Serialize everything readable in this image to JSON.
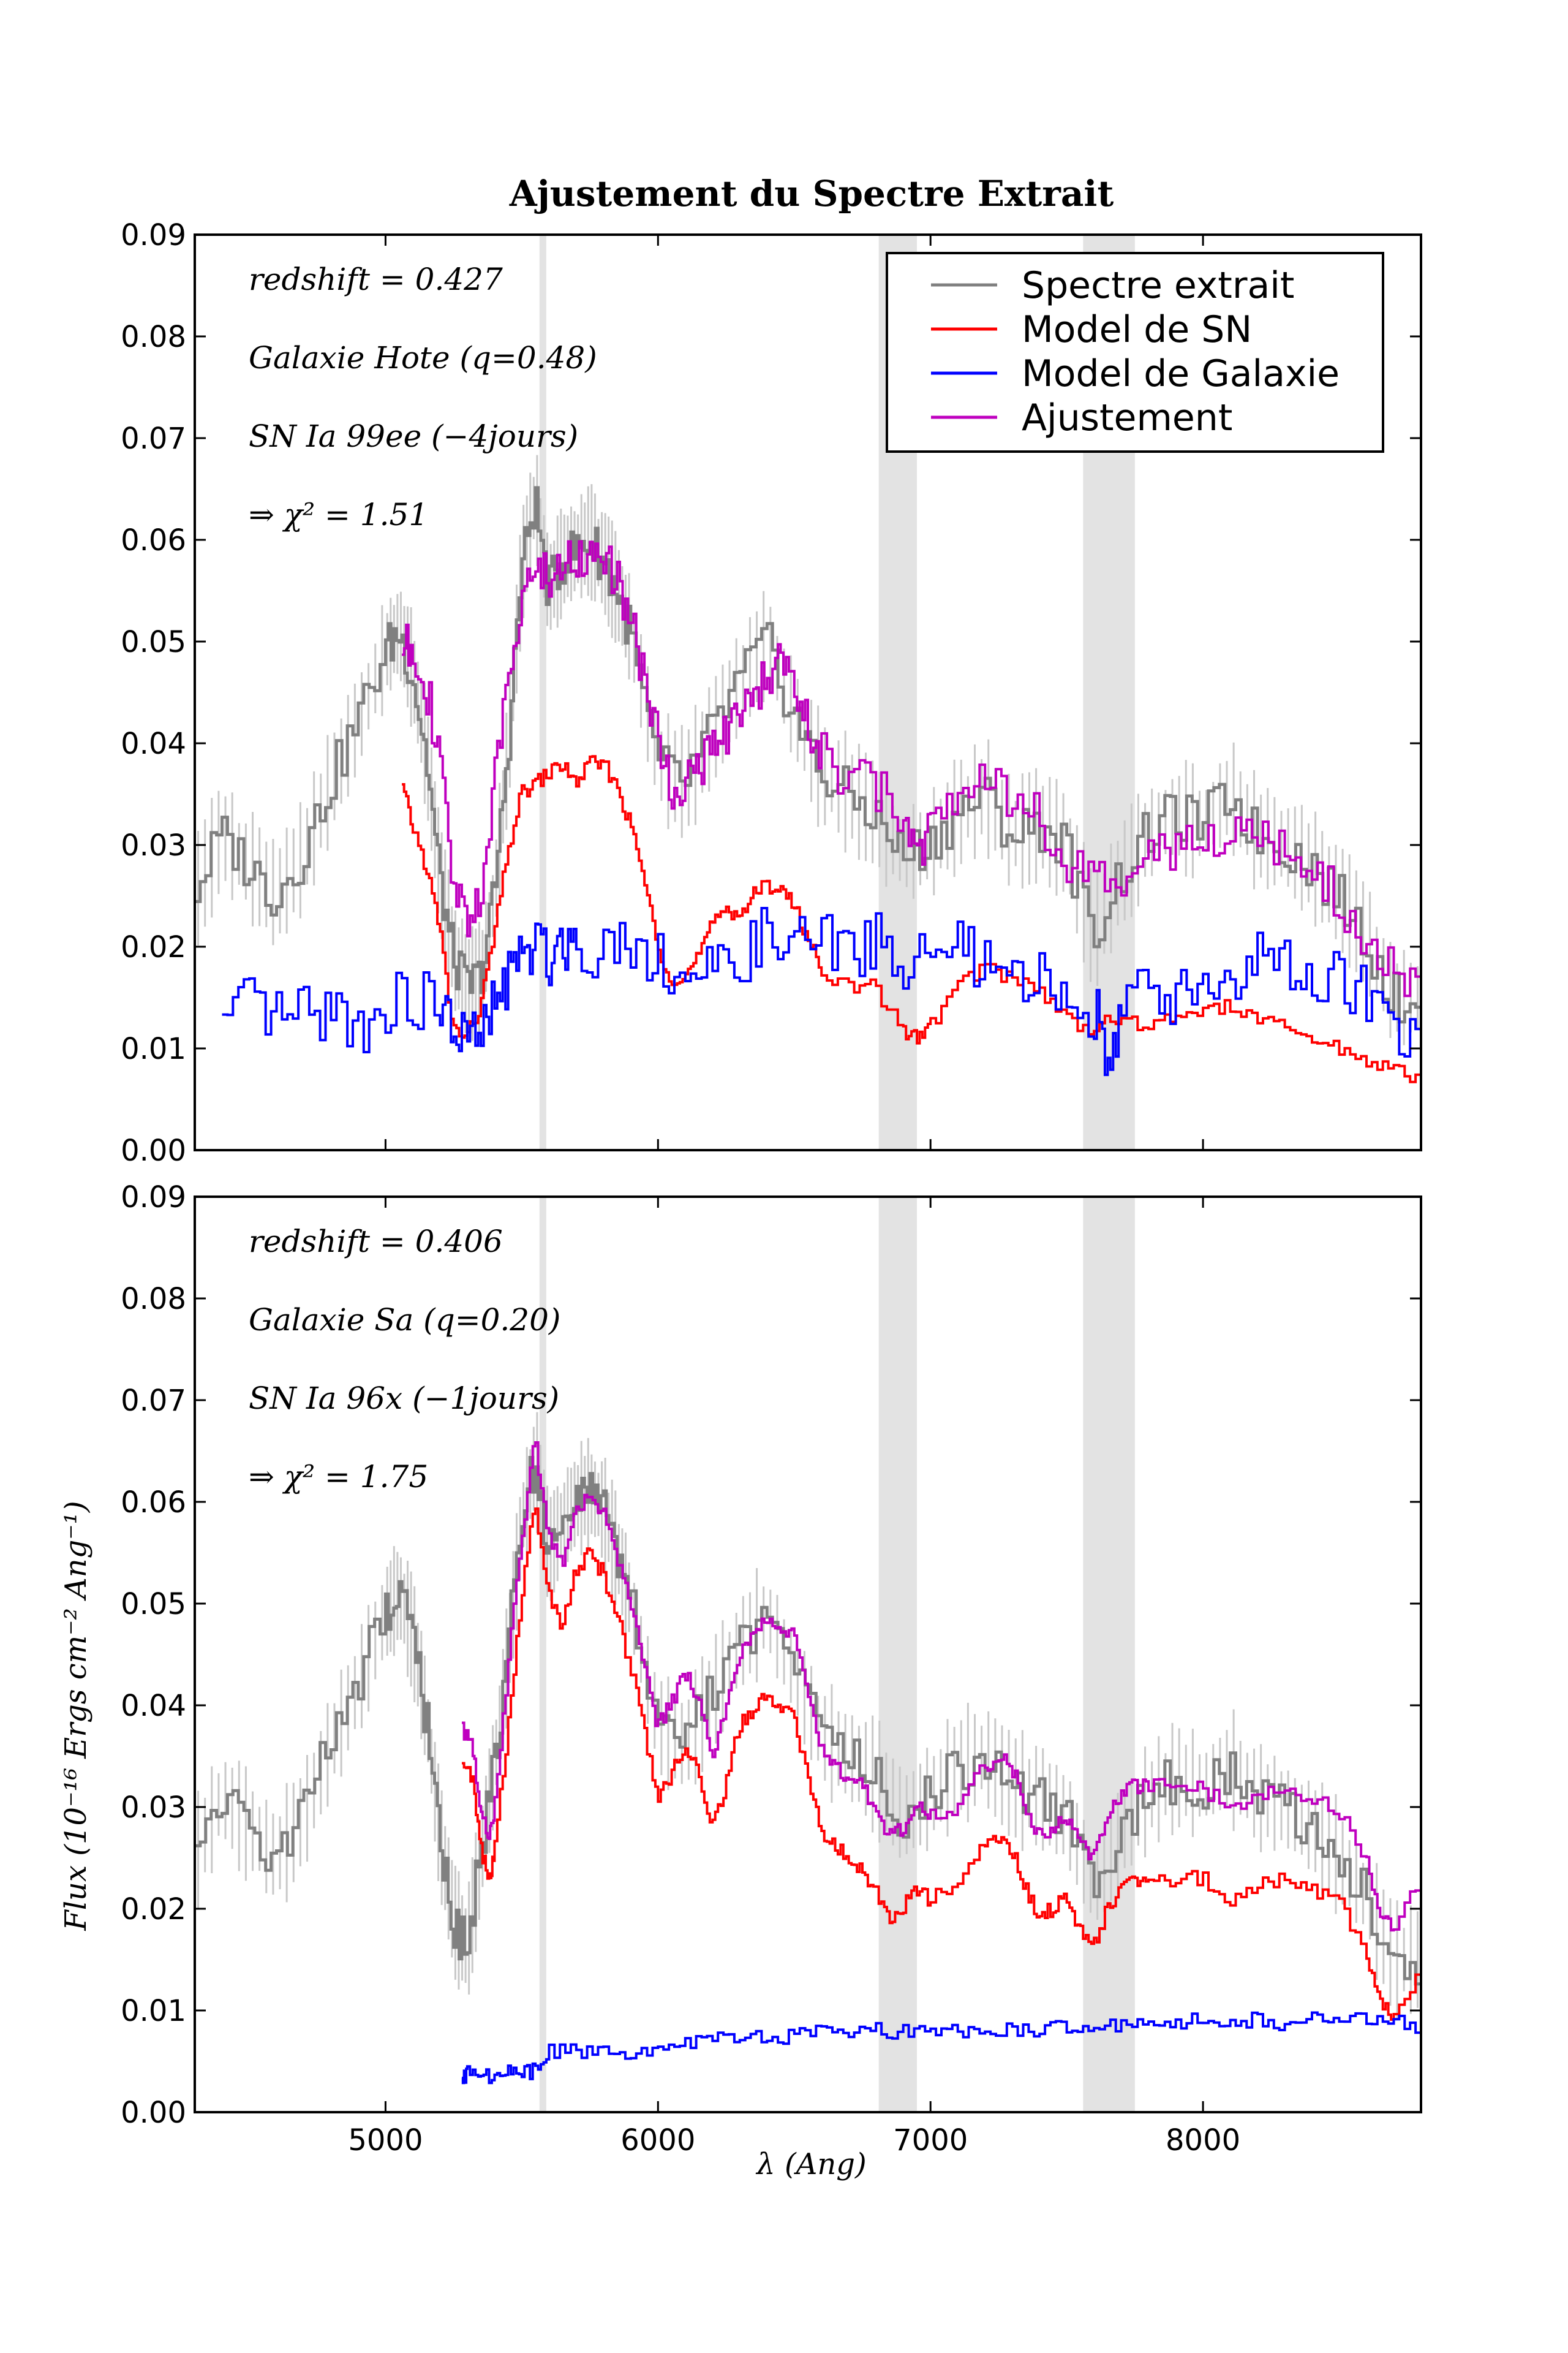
{
  "title": "Ajustement du Spectre Extrait",
  "xlabel": "λ (Ang)",
  "ylabel": "Flux (10⁻¹⁶ Ergs cm⁻² Ang⁻¹)",
  "legend": {
    "placement": "top-right",
    "entries": [
      "Spectre extrait",
      "Model de SN",
      "Model de Galaxie",
      "Ajustement"
    ]
  },
  "colors": {
    "spectre": "#808080",
    "errorbars": "#c8c8c8",
    "sn": "#ff0000",
    "galaxie": "#0000ff",
    "ajustement": "#bf00bf",
    "band": "#e3e3e3"
  },
  "chart_data": [
    {
      "type": "line",
      "panel": "top",
      "xlim": [
        4300,
        8800
      ],
      "ylim": [
        0,
        0.09
      ],
      "xticks": [
        5000,
        6000,
        7000,
        8000
      ],
      "yticks": [
        "0.00",
        "0.01",
        "0.02",
        "0.03",
        "0.04",
        "0.05",
        "0.06",
        "0.07",
        "0.08",
        "0.09"
      ],
      "shaded_bands": [
        [
          5565,
          5590
        ],
        [
          6810,
          6950
        ],
        [
          7560,
          7750
        ]
      ],
      "annotations": [
        "redshift = 0.427",
        "Galaxie Hote (q=0.48)",
        "SN Ia 99ee (−4jours)",
        "⇒ χ² = 1.51"
      ],
      "series": [
        {
          "name": "Spectre extrait",
          "x": [
            4300,
            4400,
            4500,
            4600,
            4700,
            4800,
            4900,
            5000,
            5050,
            5100,
            5150,
            5200,
            5250,
            5300,
            5350,
            5400,
            5450,
            5500,
            5550,
            5600,
            5650,
            5700,
            5750,
            5800,
            5850,
            5900,
            6000,
            6100,
            6200,
            6300,
            6400,
            6500,
            6600,
            6700,
            6800,
            6900,
            7000,
            7100,
            7200,
            7300,
            7400,
            7500,
            7600,
            7700,
            7800,
            7900,
            8000,
            8100,
            8200,
            8300,
            8400,
            8500,
            8600,
            8700,
            8800
          ],
          "y": [
            0.025,
            0.031,
            0.028,
            0.025,
            0.029,
            0.036,
            0.042,
            0.049,
            0.051,
            0.047,
            0.039,
            0.027,
            0.019,
            0.016,
            0.017,
            0.025,
            0.039,
            0.057,
            0.064,
            0.055,
            0.058,
            0.059,
            0.06,
            0.058,
            0.055,
            0.051,
            0.038,
            0.036,
            0.041,
            0.046,
            0.05,
            0.043,
            0.037,
            0.035,
            0.033,
            0.029,
            0.03,
            0.033,
            0.035,
            0.031,
            0.032,
            0.03,
            0.021,
            0.027,
            0.031,
            0.033,
            0.032,
            0.035,
            0.031,
            0.03,
            0.028,
            0.025,
            0.021,
            0.015,
            0.015
          ]
        },
        {
          "name": "Model de SN",
          "x": [
            5060,
            5100,
            5150,
            5200,
            5250,
            5300,
            5350,
            5400,
            5450,
            5500,
            5550,
            5600,
            5650,
            5700,
            5750,
            5800,
            5850,
            5900,
            5950,
            6000,
            6050,
            6100,
            6150,
            6200,
            6250,
            6300,
            6350,
            6400,
            6450,
            6500,
            6550,
            6600,
            6700,
            6800,
            6900,
            6950,
            7000,
            7100,
            7200,
            7300,
            7400,
            7500,
            7600,
            7700,
            7800,
            7900,
            8000,
            8100,
            8200,
            8300,
            8400,
            8500,
            8600,
            8700,
            8800
          ],
          "y": [
            0.036,
            0.032,
            0.028,
            0.022,
            0.012,
            0.011,
            0.014,
            0.021,
            0.029,
            0.035,
            0.036,
            0.037,
            0.038,
            0.036,
            0.038,
            0.038,
            0.036,
            0.032,
            0.027,
            0.02,
            0.017,
            0.017,
            0.019,
            0.022,
            0.024,
            0.023,
            0.025,
            0.026,
            0.026,
            0.024,
            0.021,
            0.018,
            0.016,
            0.016,
            0.012,
            0.011,
            0.012,
            0.016,
            0.018,
            0.017,
            0.016,
            0.013,
            0.012,
            0.013,
            0.012,
            0.013,
            0.014,
            0.014,
            0.013,
            0.012,
            0.011,
            0.01,
            0.009,
            0.008,
            0.007
          ]
        },
        {
          "name": "Model de Galaxie",
          "x": [
            4400,
            4500,
            4600,
            4700,
            4800,
            4900,
            5000,
            5100,
            5200,
            5250,
            5300,
            5350,
            5400,
            5450,
            5500,
            5550,
            5600,
            5650,
            5700,
            5800,
            5900,
            6000,
            6100,
            6200,
            6300,
            6400,
            6500,
            6600,
            6700,
            6800,
            6900,
            7000,
            7100,
            7200,
            7300,
            7400,
            7500,
            7600,
            7650,
            7700,
            7800,
            7900,
            8000,
            8100,
            8200,
            8300,
            8400,
            8500,
            8600,
            8700,
            8800
          ],
          "y": [
            0.012,
            0.014,
            0.013,
            0.013,
            0.014,
            0.012,
            0.014,
            0.015,
            0.014,
            0.012,
            0.011,
            0.011,
            0.014,
            0.017,
            0.019,
            0.02,
            0.019,
            0.021,
            0.02,
            0.02,
            0.021,
            0.019,
            0.017,
            0.017,
            0.019,
            0.021,
            0.02,
            0.021,
            0.019,
            0.021,
            0.018,
            0.019,
            0.02,
            0.018,
            0.016,
            0.017,
            0.015,
            0.014,
            0.01,
            0.013,
            0.016,
            0.015,
            0.017,
            0.016,
            0.019,
            0.018,
            0.016,
            0.017,
            0.015,
            0.012,
            0.01
          ]
        },
        {
          "name": "Ajustement",
          "x": [
            5060,
            5100,
            5150,
            5200,
            5250,
            5300,
            5350,
            5400,
            5450,
            5500,
            5550,
            5600,
            5650,
            5700,
            5750,
            5800,
            5850,
            5900,
            5950,
            6000,
            6050,
            6100,
            6150,
            6200,
            6250,
            6300,
            6350,
            6400,
            6450,
            6500,
            6550,
            6600,
            6700,
            6800,
            6900,
            6950,
            7000,
            7100,
            7200,
            7300,
            7400,
            7500,
            7600,
            7700,
            7800,
            7900,
            8000,
            8100,
            8200,
            8300,
            8400,
            8500,
            8600,
            8700,
            8800
          ],
          "y": [
            0.049,
            0.05,
            0.046,
            0.038,
            0.026,
            0.023,
            0.025,
            0.035,
            0.046,
            0.055,
            0.057,
            0.056,
            0.058,
            0.058,
            0.059,
            0.058,
            0.056,
            0.052,
            0.047,
            0.04,
            0.036,
            0.036,
            0.038,
            0.039,
            0.041,
            0.042,
            0.044,
            0.047,
            0.048,
            0.045,
            0.042,
            0.039,
            0.036,
            0.036,
            0.032,
            0.03,
            0.031,
            0.036,
            0.038,
            0.035,
            0.033,
            0.028,
            0.026,
            0.026,
            0.028,
            0.03,
            0.031,
            0.03,
            0.032,
            0.03,
            0.027,
            0.025,
            0.02,
            0.018,
            0.017
          ]
        }
      ]
    },
    {
      "type": "line",
      "panel": "bottom",
      "xlim": [
        4300,
        8800
      ],
      "ylim": [
        0,
        0.09
      ],
      "xticks": [
        5000,
        6000,
        7000,
        8000
      ],
      "yticks": [
        "0.00",
        "0.01",
        "0.02",
        "0.03",
        "0.04",
        "0.05",
        "0.06",
        "0.07",
        "0.08",
        "0.09"
      ],
      "shaded_bands": [
        [
          5565,
          5590
        ],
        [
          6810,
          6950
        ],
        [
          7560,
          7750
        ]
      ],
      "annotations": [
        "redshift = 0.406",
        "Galaxie Sa (q=0.20)",
        "SN Ia 96x (−1jours)",
        "⇒ χ² = 1.75"
      ],
      "series": [
        {
          "name": "Spectre extrait",
          "x": [
            4300,
            4400,
            4500,
            4600,
            4700,
            4800,
            4900,
            5000,
            5050,
            5100,
            5150,
            5200,
            5250,
            5300,
            5350,
            5400,
            5450,
            5500,
            5550,
            5600,
            5650,
            5700,
            5750,
            5800,
            5850,
            5900,
            6000,
            6100,
            6200,
            6300,
            6400,
            6500,
            6600,
            6700,
            6800,
            6900,
            7000,
            7100,
            7200,
            7300,
            7400,
            7500,
            7600,
            7700,
            7800,
            7900,
            8000,
            8100,
            8200,
            8300,
            8400,
            8500,
            8600,
            8700,
            8800
          ],
          "y": [
            0.025,
            0.031,
            0.028,
            0.025,
            0.029,
            0.036,
            0.042,
            0.049,
            0.051,
            0.047,
            0.039,
            0.027,
            0.019,
            0.016,
            0.025,
            0.034,
            0.045,
            0.058,
            0.064,
            0.055,
            0.058,
            0.06,
            0.061,
            0.059,
            0.055,
            0.05,
            0.038,
            0.036,
            0.041,
            0.046,
            0.049,
            0.043,
            0.037,
            0.035,
            0.033,
            0.029,
            0.031,
            0.034,
            0.035,
            0.032,
            0.031,
            0.029,
            0.022,
            0.027,
            0.031,
            0.033,
            0.032,
            0.034,
            0.031,
            0.03,
            0.028,
            0.025,
            0.021,
            0.015,
            0.015
          ]
        },
        {
          "name": "Model de SN",
          "x": [
            5280,
            5320,
            5350,
            5380,
            5400,
            5450,
            5500,
            5550,
            5600,
            5650,
            5700,
            5750,
            5800,
            5850,
            5900,
            5950,
            6000,
            6050,
            6100,
            6150,
            6200,
            6250,
            6300,
            6350,
            6400,
            6450,
            6500,
            6550,
            6600,
            6650,
            6700,
            6750,
            6800,
            6850,
            6900,
            6950,
            7000,
            7100,
            7200,
            7250,
            7300,
            7350,
            7400,
            7450,
            7500,
            7550,
            7600,
            7650,
            7700,
            7750,
            7800,
            7900,
            8000,
            8100,
            8200,
            8300,
            8400,
            8500,
            8600,
            8650,
            8700,
            8800
          ],
          "y": [
            0.035,
            0.033,
            0.026,
            0.023,
            0.025,
            0.037,
            0.05,
            0.06,
            0.051,
            0.048,
            0.053,
            0.055,
            0.053,
            0.049,
            0.044,
            0.038,
            0.031,
            0.033,
            0.036,
            0.034,
            0.028,
            0.032,
            0.038,
            0.039,
            0.041,
            0.04,
            0.039,
            0.033,
            0.028,
            0.026,
            0.025,
            0.024,
            0.022,
            0.019,
            0.02,
            0.022,
            0.021,
            0.022,
            0.026,
            0.027,
            0.026,
            0.022,
            0.019,
            0.02,
            0.021,
            0.018,
            0.016,
            0.02,
            0.022,
            0.023,
            0.023,
            0.023,
            0.023,
            0.021,
            0.022,
            0.023,
            0.022,
            0.021,
            0.016,
            0.011,
            0.009,
            0.014
          ]
        },
        {
          "name": "Model de Galaxie",
          "x": [
            5280,
            5300,
            5350,
            5400,
            5450,
            5500,
            5550,
            5600,
            5700,
            5800,
            5900,
            6000,
            6100,
            6200,
            6300,
            6400,
            6500,
            6600,
            6700,
            6800,
            6900,
            7000,
            7100,
            7200,
            7300,
            7400,
            7500,
            7600,
            7700,
            7800,
            7900,
            8000,
            8100,
            8200,
            8300,
            8400,
            8500,
            8600,
            8700,
            8800
          ],
          "y": [
            0.003,
            0.004,
            0.004,
            0.003,
            0.004,
            0.004,
            0.004,
            0.006,
            0.006,
            0.006,
            0.006,
            0.0065,
            0.007,
            0.007,
            0.0072,
            0.0075,
            0.0075,
            0.0078,
            0.0078,
            0.008,
            0.0078,
            0.0078,
            0.008,
            0.0082,
            0.008,
            0.0082,
            0.0082,
            0.0085,
            0.0085,
            0.0088,
            0.0088,
            0.009,
            0.009,
            0.009,
            0.0088,
            0.0092,
            0.0092,
            0.0095,
            0.009,
            0.0085
          ]
        },
        {
          "name": "Ajustement",
          "x": [
            5280,
            5320,
            5350,
            5380,
            5400,
            5450,
            5500,
            5550,
            5600,
            5650,
            5700,
            5750,
            5800,
            5850,
            5900,
            5950,
            6000,
            6050,
            6100,
            6150,
            6200,
            6250,
            6300,
            6350,
            6400,
            6450,
            6500,
            6550,
            6600,
            6650,
            6700,
            6750,
            6800,
            6850,
            6900,
            6950,
            7000,
            7100,
            7200,
            7250,
            7300,
            7350,
            7400,
            7450,
            7500,
            7550,
            7600,
            7650,
            7700,
            7750,
            7800,
            7900,
            8000,
            8100,
            8200,
            8300,
            8400,
            8500,
            8600,
            8650,
            8700,
            8800
          ],
          "y": [
            0.038,
            0.036,
            0.03,
            0.027,
            0.029,
            0.043,
            0.056,
            0.066,
            0.057,
            0.054,
            0.059,
            0.061,
            0.059,
            0.055,
            0.05,
            0.044,
            0.038,
            0.04,
            0.043,
            0.041,
            0.035,
            0.039,
            0.045,
            0.047,
            0.049,
            0.048,
            0.047,
            0.041,
            0.036,
            0.034,
            0.033,
            0.032,
            0.03,
            0.027,
            0.028,
            0.03,
            0.029,
            0.03,
            0.034,
            0.035,
            0.034,
            0.03,
            0.027,
            0.028,
            0.029,
            0.027,
            0.025,
            0.029,
            0.031,
            0.032,
            0.032,
            0.032,
            0.032,
            0.03,
            0.031,
            0.032,
            0.031,
            0.03,
            0.025,
            0.02,
            0.018,
            0.023
          ]
        }
      ]
    }
  ]
}
